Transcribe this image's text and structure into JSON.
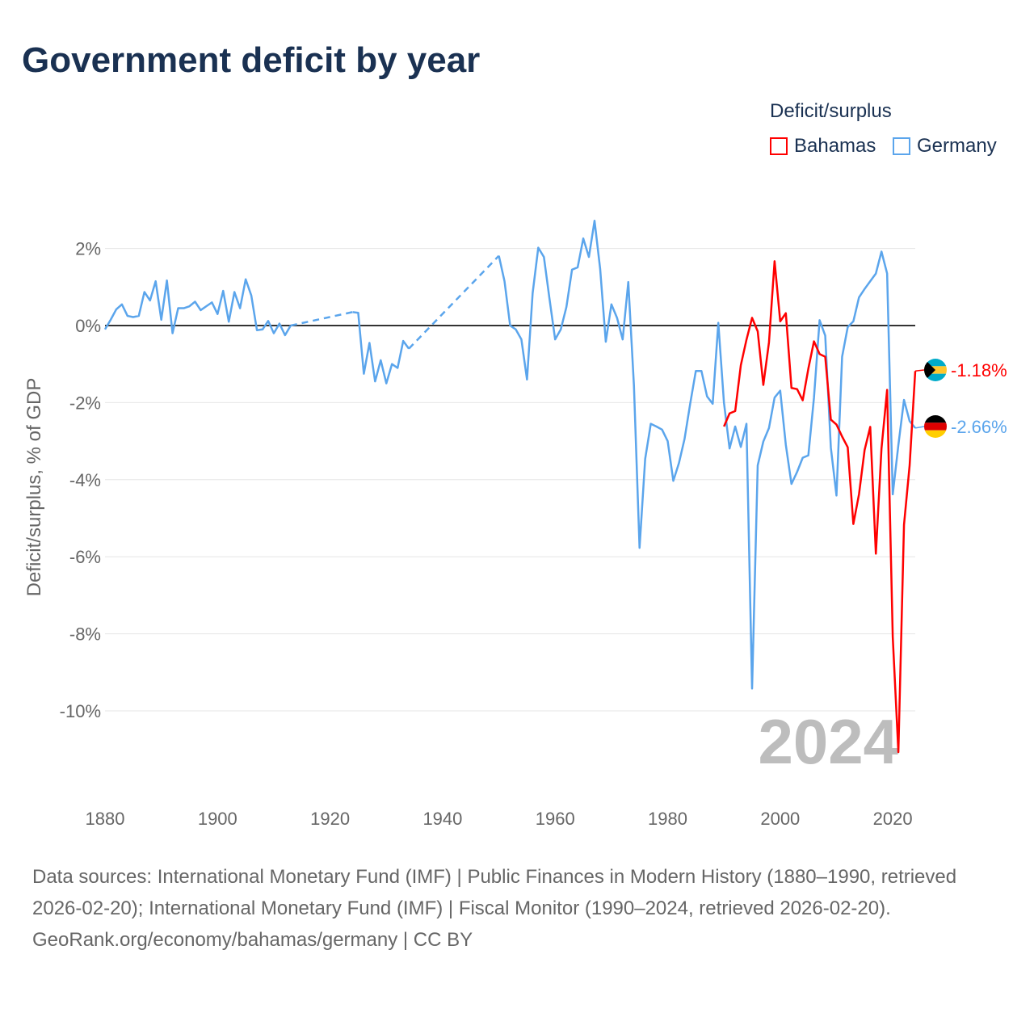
{
  "title": "Government deficit by year",
  "legend": {
    "title": "Deficit/surplus",
    "items": [
      {
        "name": "Bahamas",
        "color": "#ff0000"
      },
      {
        "name": "Germany",
        "color": "#5ba5ec"
      }
    ]
  },
  "footer": {
    "sources": "Data sources: International Monetary Fund (IMF) | Public Finances in Modern History (1880–1990, retrieved 2026-02-20); International Monetary Fund (IMF) | Fiscal Monitor (1990–2024, retrieved 2026-02-20).",
    "attribution": "GeoRank.org/economy/bahamas/germany | CC BY"
  },
  "chart_data": {
    "type": "line",
    "title": "Government deficit by year",
    "ylabel": "Deficit/surplus, % of GDP",
    "xlabel": "",
    "xlim": [
      1880,
      2024
    ],
    "ylim": [
      -12,
      3
    ],
    "x_ticks": [
      1880,
      1900,
      1920,
      1940,
      1960,
      1980,
      2000,
      2020
    ],
    "y_ticks": [
      2,
      0,
      -2,
      -4,
      -6,
      -8,
      -10
    ],
    "y_tick_labels": [
      "2%",
      "0%",
      "-2%",
      "-4%",
      "-6%",
      "-8%",
      "-10%"
    ],
    "year_label": "2024",
    "legend_position": "top-right",
    "series": [
      {
        "name": "Bahamas",
        "color": "#ff0000",
        "end_label": "-1.18%",
        "points": [
          [
            1990,
            -2.62
          ],
          [
            1991,
            -2.28
          ],
          [
            1992,
            -2.22
          ],
          [
            1993,
            -1.03
          ],
          [
            1994,
            -0.37
          ],
          [
            1995,
            0.2
          ],
          [
            1996,
            -0.15
          ],
          [
            1997,
            -1.54
          ],
          [
            1998,
            -0.44
          ],
          [
            1999,
            1.67
          ],
          [
            2000,
            0.11
          ],
          [
            2001,
            0.32
          ],
          [
            2002,
            -1.62
          ],
          [
            2003,
            -1.65
          ],
          [
            2004,
            -1.94
          ],
          [
            2005,
            -1.12
          ],
          [
            2006,
            -0.41
          ],
          [
            2007,
            -0.74
          ],
          [
            2008,
            -0.81
          ],
          [
            2009,
            -2.44
          ],
          [
            2010,
            -2.57
          ],
          [
            2011,
            -2.88
          ],
          [
            2012,
            -3.16
          ],
          [
            2013,
            -5.15
          ],
          [
            2014,
            -4.38
          ],
          [
            2015,
            -3.23
          ],
          [
            2016,
            -2.63
          ],
          [
            2017,
            -5.92
          ],
          [
            2018,
            -3.19
          ],
          [
            2019,
            -1.67
          ],
          [
            2020,
            -8.08
          ],
          [
            2021,
            -11.07
          ],
          [
            2022,
            -5.17
          ],
          [
            2023,
            -3.63
          ],
          [
            2024,
            -1.18
          ]
        ]
      },
      {
        "name": "Germany",
        "color": "#5ba5ec",
        "end_label": "-2.66%",
        "points": [
          [
            1880,
            -0.1
          ],
          [
            1881,
            0.15
          ],
          [
            1882,
            0.42
          ],
          [
            1883,
            0.55
          ],
          [
            1884,
            0.25
          ],
          [
            1885,
            0.22
          ],
          [
            1886,
            0.25
          ],
          [
            1887,
            0.87
          ],
          [
            1888,
            0.65
          ],
          [
            1889,
            1.15
          ],
          [
            1890,
            0.15
          ],
          [
            1891,
            1.17
          ],
          [
            1892,
            -0.2
          ],
          [
            1893,
            0.45
          ],
          [
            1894,
            0.45
          ],
          [
            1895,
            0.5
          ],
          [
            1896,
            0.62
          ],
          [
            1897,
            0.4
          ],
          [
            1898,
            0.5
          ],
          [
            1899,
            0.6
          ],
          [
            1900,
            0.3
          ],
          [
            1901,
            0.9
          ],
          [
            1902,
            0.1
          ],
          [
            1903,
            0.87
          ],
          [
            1904,
            0.45
          ],
          [
            1905,
            1.2
          ],
          [
            1906,
            0.78
          ],
          [
            1907,
            -0.12
          ],
          [
            1908,
            -0.1
          ],
          [
            1909,
            0.12
          ],
          [
            1910,
            -0.2
          ],
          [
            1911,
            0.05
          ],
          [
            1912,
            -0.25
          ],
          [
            1913,
            0.0
          ],
          [
            1924,
            0.35
          ],
          [
            1925,
            0.33
          ],
          [
            1926,
            -1.25
          ],
          [
            1927,
            -0.45
          ],
          [
            1928,
            -1.45
          ],
          [
            1929,
            -0.9
          ],
          [
            1930,
            -1.5
          ],
          [
            1931,
            -1.0
          ],
          [
            1932,
            -1.1
          ],
          [
            1933,
            -0.4
          ],
          [
            1934,
            -0.6
          ],
          [
            1950,
            1.81
          ],
          [
            1951,
            1.15
          ],
          [
            1952,
            0.0
          ],
          [
            1953,
            -0.1
          ],
          [
            1954,
            -0.36
          ],
          [
            1955,
            -1.4
          ],
          [
            1956,
            0.84
          ],
          [
            1957,
            2.02
          ],
          [
            1958,
            1.78
          ],
          [
            1959,
            0.69
          ],
          [
            1960,
            -0.36
          ],
          [
            1961,
            -0.1
          ],
          [
            1962,
            0.48
          ],
          [
            1963,
            1.45
          ],
          [
            1964,
            1.51
          ],
          [
            1965,
            2.26
          ],
          [
            1966,
            1.78
          ],
          [
            1967,
            2.72
          ],
          [
            1968,
            1.47
          ],
          [
            1969,
            -0.42
          ],
          [
            1970,
            0.55
          ],
          [
            1971,
            0.2
          ],
          [
            1972,
            -0.36
          ],
          [
            1973,
            1.13
          ],
          [
            1974,
            -1.55
          ],
          [
            1975,
            -5.77
          ],
          [
            1976,
            -3.46
          ],
          [
            1977,
            -2.55
          ],
          [
            1978,
            -2.62
          ],
          [
            1979,
            -2.7
          ],
          [
            1980,
            -3.0
          ],
          [
            1981,
            -4.03
          ],
          [
            1982,
            -3.57
          ],
          [
            1983,
            -2.94
          ],
          [
            1984,
            -2.03
          ],
          [
            1985,
            -1.18
          ],
          [
            1986,
            -1.18
          ],
          [
            1987,
            -1.84
          ],
          [
            1988,
            -2.03
          ],
          [
            1989,
            0.07
          ],
          [
            1990,
            -2.0
          ],
          [
            1991,
            -3.19
          ],
          [
            1992,
            -2.62
          ],
          [
            1993,
            -3.15
          ],
          [
            1994,
            -2.55
          ],
          [
            1995,
            -9.42
          ],
          [
            1996,
            -3.63
          ],
          [
            1997,
            -3.01
          ],
          [
            1998,
            -2.66
          ],
          [
            1999,
            -1.87
          ],
          [
            2000,
            -1.69
          ],
          [
            2001,
            -3.1
          ],
          [
            2002,
            -4.11
          ],
          [
            2003,
            -3.8
          ],
          [
            2004,
            -3.43
          ],
          [
            2005,
            -3.37
          ],
          [
            2006,
            -1.87
          ],
          [
            2007,
            0.14
          ],
          [
            2008,
            -0.26
          ],
          [
            2009,
            -3.17
          ],
          [
            2010,
            -4.41
          ],
          [
            2011,
            -0.81
          ],
          [
            2012,
            -0.04
          ],
          [
            2013,
            0.11
          ],
          [
            2014,
            0.73
          ],
          [
            2015,
            0.95
          ],
          [
            2016,
            1.15
          ],
          [
            2017,
            1.35
          ],
          [
            2018,
            1.92
          ],
          [
            2019,
            1.35
          ],
          [
            2020,
            -4.38
          ],
          [
            2021,
            -3.1
          ],
          [
            2022,
            -1.93
          ],
          [
            2023,
            -2.48
          ],
          [
            2024,
            -2.66
          ]
        ]
      }
    ]
  }
}
